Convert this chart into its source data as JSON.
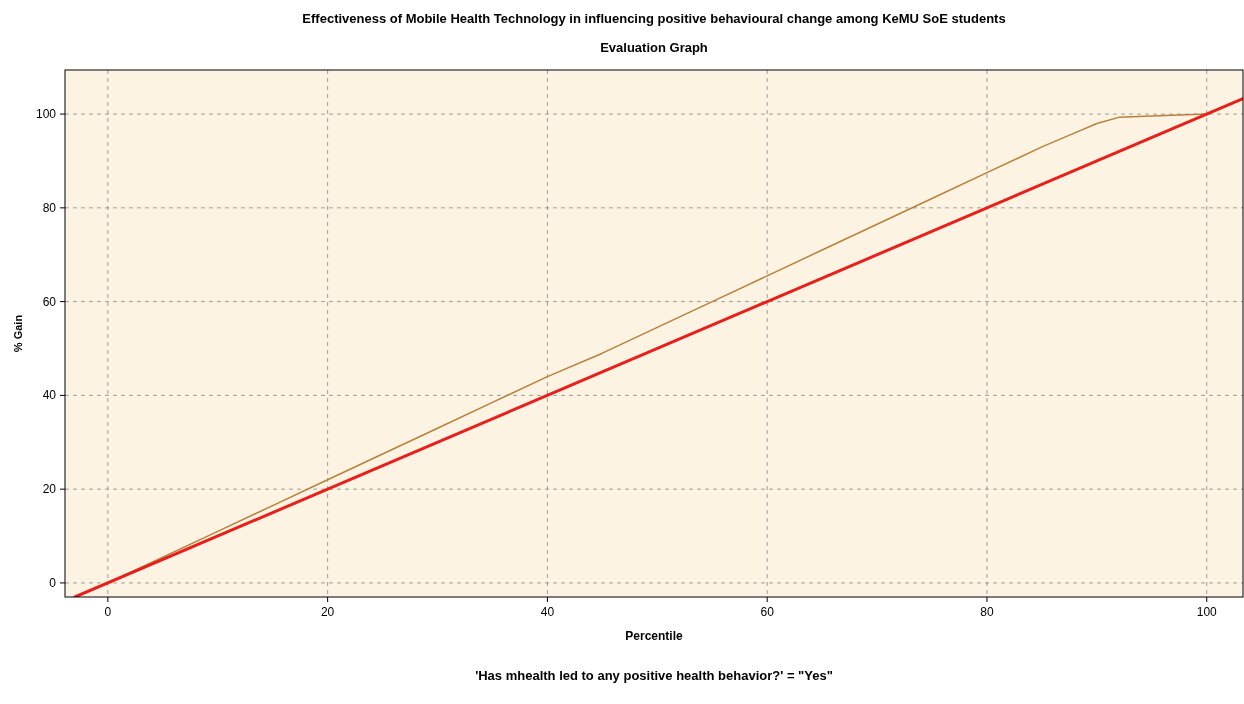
{
  "chart_data": {
    "type": "line",
    "title": "Effectiveness of Mobile Health Technology in influencing positive behavioural change among KeMU SoE students",
    "subtitle": "Evaluation Graph",
    "xlabel": "Percentile",
    "ylabel": "% Gain",
    "annotations": [
      "'Has mhealth led to any positive health behavior?' = \"Yes\""
    ],
    "xlim": [
      -3.9,
      103.3
    ],
    "ylim": [
      -3,
      109.4
    ],
    "xticks": [
      0,
      20,
      40,
      60,
      80,
      100
    ],
    "yticks": [
      0,
      20,
      40,
      60,
      80,
      100
    ],
    "grid": true,
    "line_style": "solid",
    "marker": "none",
    "series": [
      {
        "color": "#b8803a",
        "x": [
          0,
          5,
          10,
          15,
          20,
          25,
          30,
          35,
          40,
          45,
          50,
          55,
          60,
          65,
          70,
          75,
          80,
          85,
          88,
          90,
          92,
          95,
          100
        ],
        "values": [
          0,
          5.5,
          11,
          16.5,
          22,
          27.5,
          33,
          38.5,
          44,
          49,
          54.5,
          60,
          65.5,
          71,
          76.5,
          82,
          87.5,
          93,
          96,
          98,
          99.3,
          99.6,
          100
        ]
      },
      {
        "color": "#e8201c",
        "x": [
          -3,
          103.3
        ],
        "values": [
          -3,
          103.3
        ]
      }
    ]
  }
}
